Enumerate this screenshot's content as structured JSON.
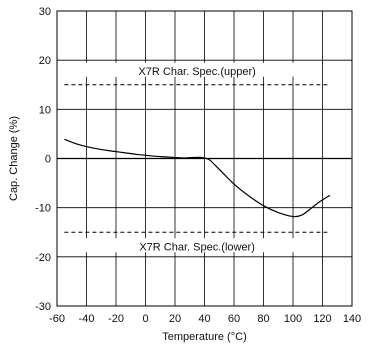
{
  "chart_data": {
    "type": "line",
    "title": "",
    "xlabel": "Temperature (°C)",
    "ylabel": "Cap. Change (%)",
    "xlim": [
      -60,
      140
    ],
    "ylim": [
      -30,
      30
    ],
    "x_ticks": [
      -60,
      -40,
      -20,
      0,
      20,
      40,
      60,
      80,
      100,
      120,
      140
    ],
    "y_ticks": [
      -30,
      -20,
      -10,
      0,
      10,
      20,
      30
    ],
    "grid": true,
    "series": [
      {
        "name": "",
        "x": [
          -55,
          -45,
          -35,
          -25,
          -15,
          -5,
          5,
          15,
          25,
          32,
          38,
          43,
          47,
          52,
          60,
          70,
          80,
          90,
          100,
          106,
          112,
          118,
          125
        ],
        "y": [
          3.9,
          2.8,
          2.1,
          1.6,
          1.2,
          0.8,
          0.5,
          0.3,
          0.1,
          0.2,
          0.2,
          -0.2,
          -1.3,
          -2.8,
          -5.2,
          -7.6,
          -9.6,
          -11.0,
          -11.8,
          -11.5,
          -10.2,
          -8.8,
          -7.5
        ]
      }
    ],
    "annotations": [
      {
        "text": "X7R Char. Spec.(upper)",
        "y": 15
      },
      {
        "text": "X7R Char. Spec.(lower)",
        "y": -15
      }
    ]
  }
}
